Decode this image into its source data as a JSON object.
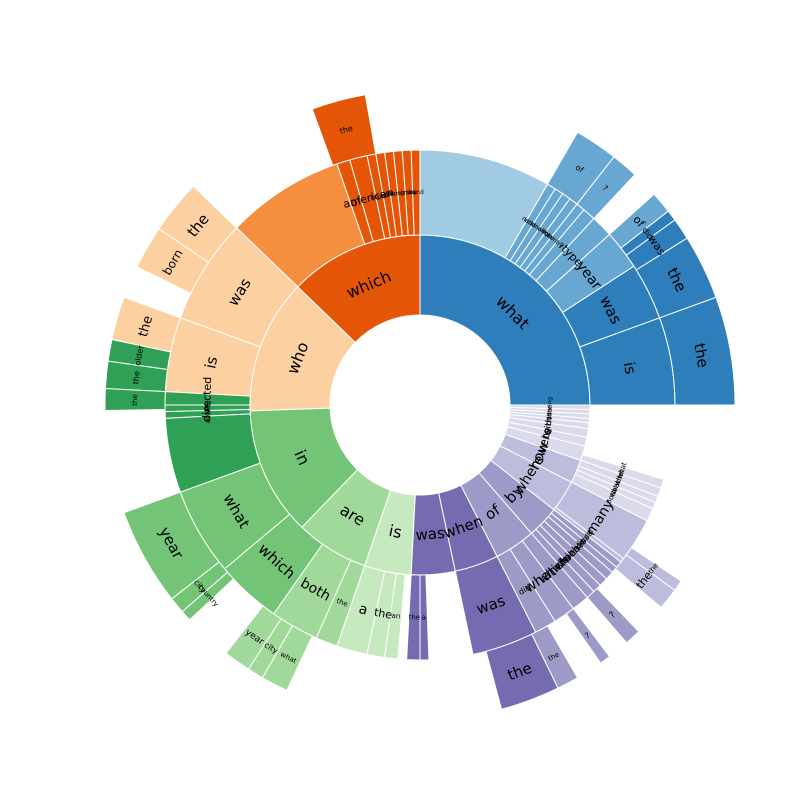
{
  "chart_data": {
    "type": "sunburst",
    "title": "",
    "colors": {
      "what": [
        "#2f7ebc",
        "#67a7d2",
        "#a0cbe2"
      ],
      "which": [
        "#e55507",
        "#f58e3e",
        "#fdd0a2"
      ],
      "who": [
        "#fdd0a2",
        "#f58e3e",
        "#2fa055"
      ],
      "in": [
        "#73c476",
        "#a1d99b",
        "#c7e9c0"
      ],
      "purple": [
        "#756bb1",
        "#9e9ac8",
        "#bcbddc",
        "#dadaeb"
      ],
      "line": "#ffffff"
    },
    "ring1": [
      {
        "label": "what",
        "start": 0,
        "end": 90,
        "color": "#2f7ebc",
        "fs": 16
      },
      {
        "label": "which",
        "start": 90,
        "end": 136,
        "color": "#e55507",
        "fs": 16
      },
      {
        "label": "who",
        "start": 136,
        "end": 182,
        "color": "#fdd0a2",
        "fs": 16
      },
      {
        "label": "in",
        "start": 182,
        "end": 226,
        "color": "#73c476",
        "fs": 16
      },
      {
        "label": "are",
        "start": 226,
        "end": 251,
        "color": "#a1d99b",
        "fs": 16
      },
      {
        "label": "is",
        "start": 251,
        "end": 267,
        "color": "#c7e9c0",
        "fs": 16
      },
      {
        "label": "was",
        "start": 267,
        "end": 282,
        "color": "#756bb1",
        "fs": 15
      },
      {
        "label": "when",
        "start": 282,
        "end": 297,
        "color": "#756bb1",
        "fs": 15
      },
      {
        "label": "of",
        "start": 297,
        "end": 311,
        "color": "#9e9ac8",
        "fs": 15
      },
      {
        "label": "by",
        "start": 311,
        "end": 322,
        "color": "#9e9ac8",
        "fs": 15
      },
      {
        "label": "where",
        "start": 322,
        "end": 333,
        "color": "#bcbddc",
        "fs": 14
      },
      {
        "label": "how",
        "start": 333,
        "end": 341,
        "color": "#bcbddc",
        "fs": 14
      },
      {
        "label": "were",
        "start": 341,
        "end": 346,
        "color": "#dadaeb",
        "fs": 12
      },
      {
        "label": "to",
        "start": 346,
        "end": 349,
        "color": "#dadaeb",
        "fs": 11
      },
      {
        "label": "with",
        "start": 349,
        "end": 352,
        "color": "#dadaeb",
        "fs": 9
      },
      {
        "label": "on",
        "start": 352,
        "end": 354,
        "color": "#dadaeb",
        "fs": 7
      },
      {
        "label": "do",
        "start": 354,
        "end": 355.5,
        "color": "#dadaeb",
        "fs": 6
      },
      {
        "label": "this",
        "start": 355.5,
        "end": 357,
        "color": "#dadaeb",
        "fs": 6
      },
      {
        "label": "the",
        "start": 357,
        "end": 358.5,
        "color": "#dadaeb",
        "fs": 6
      },
      {
        "label": "during",
        "start": 358.5,
        "end": 360,
        "color": "#dadaeb",
        "fs": 6
      }
    ],
    "ring2": [
      {
        "label": "is",
        "start": 0,
        "end": 20,
        "color": "#2f7ebc",
        "fs": 15
      },
      {
        "label": "was",
        "start": 20,
        "end": 33,
        "color": "#2f7ebc",
        "fs": 15
      },
      {
        "label": "year",
        "start": 33,
        "end": 42,
        "color": "#67a7d2",
        "fs": 14
      },
      {
        "label": "type",
        "start": 42,
        "end": 47,
        "color": "#67a7d2",
        "fs": 11
      },
      {
        "label": "?",
        "start": 47,
        "end": 50,
        "color": "#67a7d2",
        "fs": 8
      },
      {
        "label": "country",
        "start": 50,
        "end": 52,
        "color": "#67a7d2",
        "fs": 6
      },
      {
        "label": "color",
        "start": 52,
        "end": 54,
        "color": "#67a7d2",
        "fs": 6
      },
      {
        "label": "american",
        "start": 54,
        "end": 56,
        "color": "#67a7d2",
        "fs": 6
      },
      {
        "label": "nationality",
        "start": 56,
        "end": 58,
        "color": "#67a7d2",
        "fs": 6
      },
      {
        "label": "kind",
        "start": 58,
        "end": 60,
        "color": "#67a7d2",
        "fs": 6
      },
      {
        "label": "",
        "start": 60,
        "end": 90,
        "color": "#a0cbe2",
        "fs": 6
      },
      {
        "label": "band",
        "start": 90,
        "end": 92,
        "color": "#e55507",
        "fs": 6
      },
      {
        "label": "group",
        "start": 92,
        "end": 94,
        "color": "#e55507",
        "fs": 6
      },
      {
        "label": "musician",
        "start": 94,
        "end": 96,
        "color": "#e55507",
        "fs": 6
      },
      {
        "label": "film",
        "start": 96,
        "end": 98,
        "color": "#e55507",
        "fs": 6
      },
      {
        "label": "rock",
        "start": 98,
        "end": 100,
        "color": "#e55507",
        "fs": 6
      },
      {
        "label": "band",
        "start": 100,
        "end": 102,
        "color": "#e55507",
        "fs": 7
      },
      {
        "label": "american",
        "start": 102,
        "end": 106,
        "color": "#e55507",
        "fs": 11
      },
      {
        "label": "of",
        "start": 106,
        "end": 109,
        "color": "#e55507",
        "fs": 11
      },
      {
        "label": "",
        "start": 109,
        "end": 136,
        "color": "#f58e3e",
        "fs": 6
      },
      {
        "label": "was",
        "start": 136,
        "end": 160,
        "color": "#fdd0a2",
        "fs": 15
      },
      {
        "label": "is",
        "start": 160,
        "end": 177,
        "color": "#fdd0a2",
        "fs": 15
      },
      {
        "label": "directed",
        "start": 177,
        "end": 180,
        "color": "#2fa055",
        "fs": 11
      },
      {
        "label": "has",
        "start": 180,
        "end": 181.5,
        "color": "#2fa055",
        "fs": 8
      },
      {
        "label": "wrote",
        "start": 181.5,
        "end": 183,
        "color": "#2fa055",
        "fs": 7
      },
      {
        "label": "",
        "start": 183,
        "end": 200,
        "color": "#2fa055",
        "fs": 6
      },
      {
        "label": "what",
        "start": 200,
        "end": 220,
        "color": "#73c476",
        "fs": 15
      },
      {
        "label": "which",
        "start": 220,
        "end": 235,
        "color": "#73c476",
        "fs": 15
      },
      {
        "label": "both",
        "start": 235,
        "end": 246,
        "color": "#a1d99b",
        "fs": 14
      },
      {
        "label": "the",
        "start": 246,
        "end": 251,
        "color": "#a1d99b",
        "fs": 7
      },
      {
        "label": "a",
        "start": 251,
        "end": 258,
        "color": "#c7e9c0",
        "fs": 14
      },
      {
        "label": "the",
        "start": 258,
        "end": 262,
        "color": "#c7e9c0",
        "fs": 11
      },
      {
        "label": "an",
        "start": 262,
        "end": 265,
        "color": "#c7e9c0",
        "fs": 7
      },
      {
        "label": "the",
        "start": 267,
        "end": 270,
        "color": "#756bb1",
        "fs": 7
      },
      {
        "label": "a",
        "start": 270,
        "end": 272,
        "color": "#756bb1",
        "fs": 7
      },
      {
        "label": "was",
        "start": 282,
        "end": 297,
        "color": "#756bb1",
        "fs": 15
      },
      {
        "label": "did",
        "start": 297,
        "end": 302,
        "color": "#9e9ac8",
        "fs": 8
      },
      {
        "label": "what",
        "start": 302,
        "end": 307,
        "color": "#9e9ac8",
        "fs": 14
      },
      {
        "label": "which",
        "start": 307,
        "end": 311,
        "color": "#9e9ac8",
        "fs": 12
      },
      {
        "label": "who",
        "start": 311,
        "end": 313,
        "color": "#9e9ac8",
        "fs": 11
      },
      {
        "label": "which",
        "start": 313,
        "end": 315,
        "color": "#9e9ac8",
        "fs": 11
      },
      {
        "label": "what",
        "start": 315,
        "end": 317,
        "color": "#9e9ac8",
        "fs": 10
      },
      {
        "label": "whom",
        "start": 317,
        "end": 319,
        "color": "#9e9ac8",
        "fs": 7
      },
      {
        "label": "is",
        "start": 319,
        "end": 320.5,
        "color": "#9e9ac8",
        "fs": 10
      },
      {
        "label": "was",
        "start": 320.5,
        "end": 322,
        "color": "#9e9ac8",
        "fs": 8
      },
      {
        "label": "did",
        "start": 322,
        "end": 323,
        "color": "#bcbddc",
        "fs": 7
      },
      {
        "label": "many",
        "start": 323,
        "end": 333,
        "color": "#bcbddc",
        "fs": 14
      },
      {
        "label": "both",
        "start": 333,
        "end": 336,
        "color": "#dadaeb",
        "fs": 7
      },
      {
        "label": "what",
        "start": 336,
        "end": 337.5,
        "color": "#dadaeb",
        "fs": 7
      },
      {
        "label": "which",
        "start": 337.5,
        "end": 339,
        "color": "#dadaeb",
        "fs": 7
      },
      {
        "label": "what",
        "start": 339,
        "end": 341,
        "color": "#dadaeb",
        "fs": 7
      },
      {
        "label": "what",
        "start": 341,
        "end": 343,
        "color": "#dadaeb",
        "fs": 7
      }
    ],
    "ring3": [
      {
        "label": "the",
        "start": 0,
        "end": 20,
        "color": "#2f7ebc",
        "fs": 15
      },
      {
        "label": "the",
        "start": 20,
        "end": 32,
        "color": "#2f7ebc",
        "fs": 15
      },
      {
        "label": "was",
        "start": 32,
        "end": 36,
        "color": "#2f7ebc",
        "fs": 11
      },
      {
        "label": "did",
        "start": 36,
        "end": 38,
        "color": "#2f7ebc",
        "fs": 8
      },
      {
        "label": "of",
        "start": 38,
        "end": 42,
        "color": "#67a7d2",
        "fs": 11
      },
      {
        "label": "?",
        "start": 47,
        "end": 52,
        "color": "#67a7d2",
        "fs": 8
      },
      {
        "label": "of",
        "start": 52,
        "end": 60,
        "color": "#67a7d2",
        "fs": 8
      },
      {
        "label": "the",
        "start": 100,
        "end": 110,
        "color": "#e55507",
        "fs": 8
      },
      {
        "label": "the",
        "start": 136,
        "end": 146,
        "color": "#fdd0a2",
        "fs": 15
      },
      {
        "label": "born",
        "start": 146,
        "end": 154,
        "color": "#fdd0a2",
        "fs": 12
      },
      {
        "label": "the",
        "start": 160,
        "end": 168,
        "color": "#fdd0a2",
        "fs": 13
      },
      {
        "label": "older",
        "start": 168,
        "end": 172,
        "color": "#2fa055",
        "fs": 8
      },
      {
        "label": "the",
        "start": 172,
        "end": 177,
        "color": "#2fa055",
        "fs": 8
      },
      {
        "label": "the",
        "start": 177,
        "end": 181,
        "color": "#2fa055",
        "fs": 7
      },
      {
        "label": "year",
        "start": 200,
        "end": 218,
        "color": "#73c476",
        "fs": 15
      },
      {
        "label": "city",
        "start": 218,
        "end": 221,
        "color": "#73c476",
        "fs": 8
      },
      {
        "label": "country",
        "start": 221,
        "end": 223,
        "color": "#73c476",
        "fs": 7
      },
      {
        "label": "year",
        "start": 232,
        "end": 237,
        "color": "#a1d99b",
        "fs": 9
      },
      {
        "label": "city",
        "start": 237,
        "end": 240,
        "color": "#a1d99b",
        "fs": 8
      },
      {
        "label": "what",
        "start": 240,
        "end": 245,
        "color": "#a1d99b",
        "fs": 7
      },
      {
        "label": "the",
        "start": 285,
        "end": 296,
        "color": "#756bb1",
        "fs": 15
      },
      {
        "label": "the",
        "start": 296,
        "end": 300,
        "color": "#9e9ac8",
        "fs": 7
      },
      {
        "label": "?",
        "start": 305,
        "end": 307,
        "color": "#9e9ac8",
        "fs": 8
      },
      {
        "label": "?",
        "start": 311,
        "end": 314,
        "color": "#9e9ac8",
        "fs": 9
      },
      {
        "label": "the",
        "start": 320,
        "end": 324,
        "color": "#bcbddc",
        "fs": 11
      },
      {
        "label": "the",
        "start": 324,
        "end": 326,
        "color": "#bcbddc",
        "fs": 7
      }
    ]
  }
}
